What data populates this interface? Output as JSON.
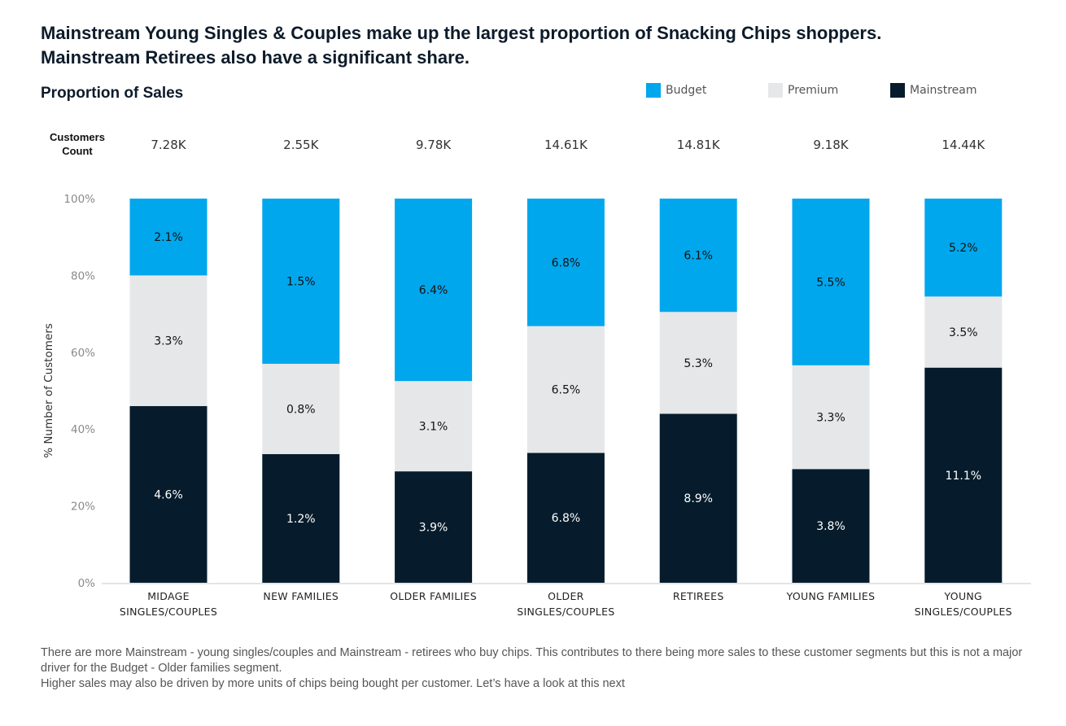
{
  "page": {
    "title_line1": "Mainstream Young Singles & Couples make up the largest proportion of Snacking Chips shoppers.",
    "title_line2": "Mainstream Retirees also have a significant share.",
    "subtitle": "Proportion of Sales",
    "customers_count_label": "Customers Count",
    "footnote_line1": "There are more Mainstream - young singles/couples and Mainstream - retirees who buy chips. This contributes to there being more sales to these customer segments but this is not a major driver for the Budget - Older families segment.",
    "footnote_line2": "Higher sales may also be driven by more units of chips being bought per customer. Let’s have a look at this next"
  },
  "legend": [
    {
      "label": "Budget",
      "color": "#00a7ed"
    },
    {
      "label": "Premium",
      "color": "#e6e7e9"
    },
    {
      "label": "Mainstream",
      "color": "#061c2c"
    }
  ],
  "chart_data": {
    "type": "bar",
    "stacked": true,
    "ylabel": "% Number of Customers",
    "ylim": [
      0,
      100
    ],
    "yticks": [
      "0%",
      "20%",
      "40%",
      "60%",
      "80%",
      "100%"
    ],
    "grid": false,
    "legend_position": "top-right",
    "categories": [
      [
        "MIDAGE",
        "SINGLES/COUPLES"
      ],
      [
        "NEW FAMILIES"
      ],
      [
        "OLDER FAMILIES"
      ],
      [
        "OLDER",
        "SINGLES/COUPLES"
      ],
      [
        "RETIREES"
      ],
      [
        "YOUNG FAMILIES"
      ],
      [
        "YOUNG",
        "SINGLES/COUPLES"
      ]
    ],
    "customers_count": [
      "7.28K",
      "2.55K",
      "9.78K",
      "14.61K",
      "14.81K",
      "9.18K",
      "14.44K"
    ],
    "series": [
      {
        "name": "Mainstream",
        "color": "#061c2c",
        "label_color": "#ffffff",
        "values": [
          46,
          33.5,
          29,
          33.8,
          44,
          29.6,
          56
        ],
        "labels": [
          "4.6%",
          "1.2%",
          "3.9%",
          "6.8%",
          "8.9%",
          "3.8%",
          "11.1%"
        ]
      },
      {
        "name": "Premium",
        "color": "#e6e7e9",
        "label_color": "#111111",
        "values": [
          34,
          23.5,
          23.5,
          33,
          26.5,
          27,
          18.5
        ],
        "labels": [
          "3.3%",
          "0.8%",
          "3.1%",
          "6.5%",
          "5.3%",
          "3.3%",
          "3.5%"
        ]
      },
      {
        "name": "Budget",
        "color": "#00a7ed",
        "label_color": "#111111",
        "values": [
          20,
          43,
          47.5,
          33.2,
          29.5,
          43.4,
          25.5
        ],
        "labels": [
          "2.1%",
          "1.5%",
          "6.4%",
          "6.8%",
          "6.1%",
          "5.5%",
          "5.2%"
        ]
      }
    ]
  }
}
